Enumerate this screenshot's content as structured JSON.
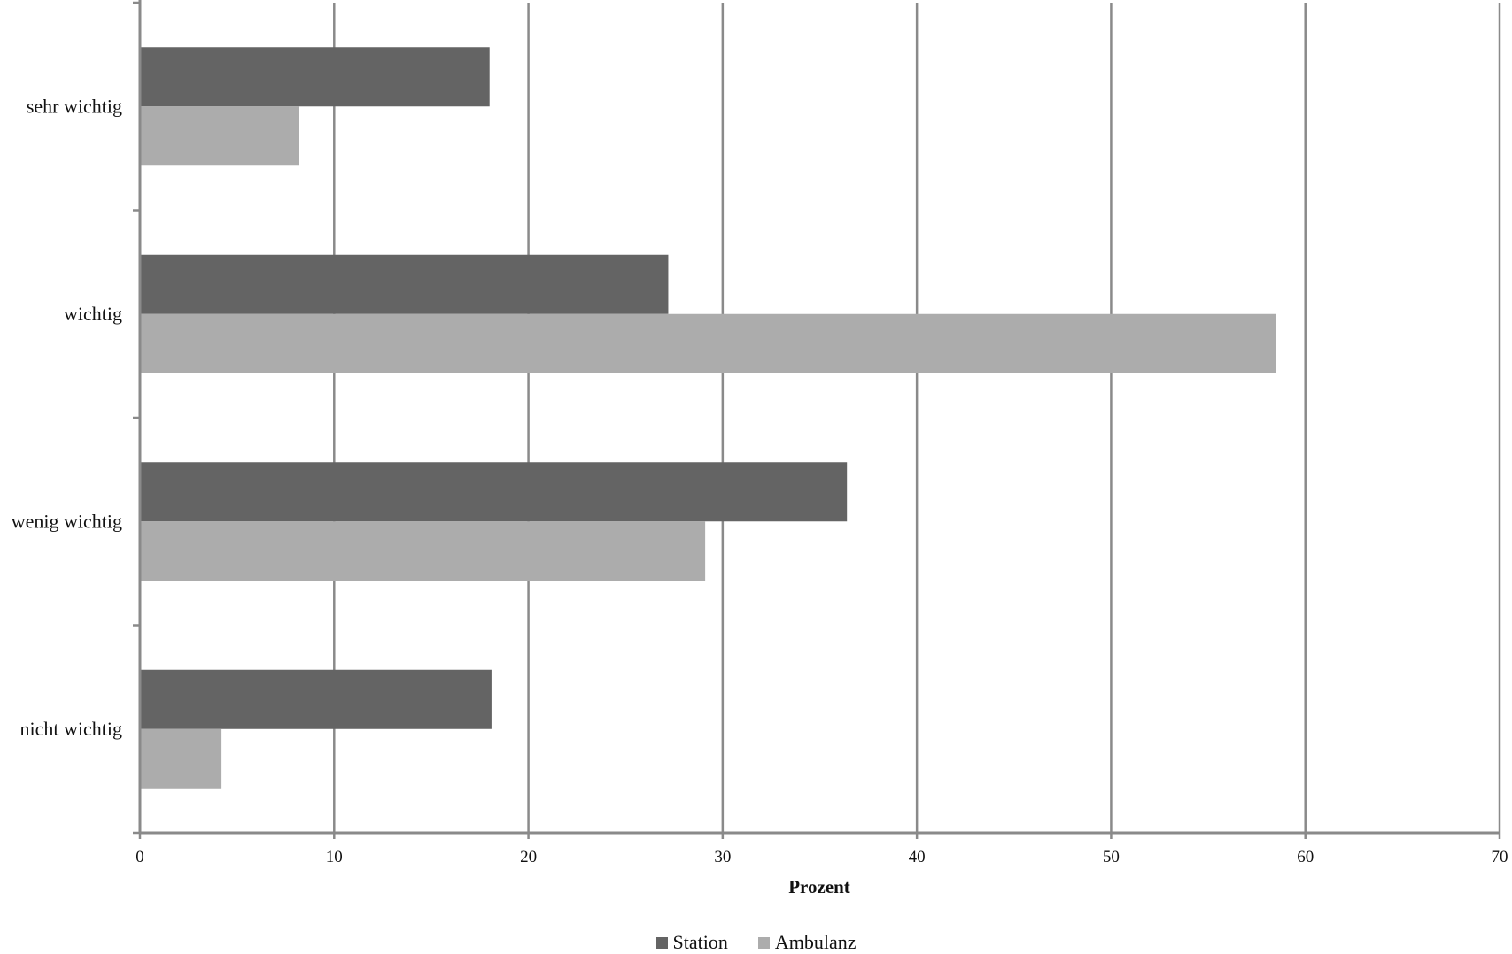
{
  "chart_data": {
    "type": "bar",
    "orientation": "horizontal",
    "title": "",
    "xlabel": "Prozent",
    "ylabel": "",
    "categories": [
      "sehr wichtig",
      "wichtig",
      "wenig wichtig",
      "nicht wichtig"
    ],
    "series": [
      {
        "name": "Station",
        "values": [
          18.0,
          27.2,
          36.4,
          18.1
        ],
        "color": "#646464"
      },
      {
        "name": "Ambulanz",
        "values": [
          8.2,
          58.5,
          29.1,
          4.2
        ],
        "color": "#acacac"
      }
    ],
    "xlim": [
      0,
      70
    ],
    "xticks": [
      "0",
      "10",
      "20",
      "30",
      "40",
      "50",
      "60",
      "70"
    ],
    "grid": "vertical",
    "legend": "bottom-center"
  }
}
